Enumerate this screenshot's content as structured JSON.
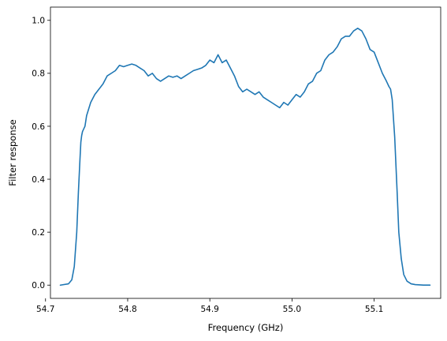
{
  "chart_data": {
    "type": "line",
    "title": "",
    "xlabel": "Frequency (GHz)",
    "ylabel": "Filter response",
    "xlim": [
      54.706,
      55.181
    ],
    "ylim": [
      -0.05,
      1.05
    ],
    "xticks": [
      54.7,
      54.8,
      54.9,
      55.0,
      55.1
    ],
    "xtick_labels": [
      "54.7",
      "54.8",
      "54.9",
      "55.0",
      "55.1"
    ],
    "yticks": [
      0.0,
      0.2,
      0.4,
      0.6,
      0.8,
      1.0
    ],
    "ytick_labels": [
      "0.0",
      "0.2",
      "0.4",
      "0.6",
      "0.8",
      "1.0"
    ],
    "grid": false,
    "legend": "none",
    "series": [
      {
        "color": "#1f77b4",
        "x": [
          54.718,
          54.728,
          54.732,
          54.735,
          54.738,
          54.74,
          54.742,
          54.743,
          54.744,
          54.745,
          54.748,
          54.75,
          54.755,
          54.76,
          54.765,
          54.77,
          54.775,
          54.78,
          54.785,
          54.79,
          54.795,
          54.8,
          54.805,
          54.81,
          54.815,
          54.82,
          54.825,
          54.83,
          54.835,
          54.84,
          54.845,
          54.85,
          54.855,
          54.86,
          54.865,
          54.87,
          54.875,
          54.88,
          54.885,
          54.89,
          54.895,
          54.9,
          54.905,
          54.91,
          54.915,
          54.92,
          54.925,
          54.93,
          54.935,
          54.94,
          54.945,
          54.95,
          54.955,
          54.96,
          54.965,
          54.97,
          54.975,
          54.98,
          54.985,
          54.99,
          54.995,
          55.0,
          55.005,
          55.01,
          55.015,
          55.02,
          55.025,
          55.03,
          55.035,
          55.04,
          55.045,
          55.05,
          55.055,
          55.06,
          55.065,
          55.07,
          55.075,
          55.08,
          55.085,
          55.09,
          55.095,
          55.1,
          55.105,
          55.11,
          55.115,
          55.118,
          55.12,
          55.122,
          55.125,
          55.128,
          55.13,
          55.133,
          55.136,
          55.14,
          55.145,
          55.15,
          55.16,
          55.168
        ],
        "y": [
          0.0,
          0.005,
          0.02,
          0.07,
          0.2,
          0.35,
          0.48,
          0.54,
          0.565,
          0.58,
          0.6,
          0.64,
          0.69,
          0.72,
          0.74,
          0.76,
          0.79,
          0.8,
          0.81,
          0.83,
          0.825,
          0.83,
          0.835,
          0.83,
          0.82,
          0.81,
          0.79,
          0.8,
          0.78,
          0.77,
          0.78,
          0.79,
          0.785,
          0.79,
          0.78,
          0.79,
          0.8,
          0.81,
          0.815,
          0.82,
          0.83,
          0.85,
          0.84,
          0.87,
          0.84,
          0.85,
          0.82,
          0.79,
          0.75,
          0.73,
          0.74,
          0.73,
          0.72,
          0.73,
          0.71,
          0.7,
          0.69,
          0.68,
          0.67,
          0.69,
          0.68,
          0.7,
          0.72,
          0.71,
          0.73,
          0.76,
          0.77,
          0.8,
          0.81,
          0.85,
          0.87,
          0.88,
          0.9,
          0.93,
          0.94,
          0.94,
          0.96,
          0.97,
          0.96,
          0.93,
          0.89,
          0.88,
          0.84,
          0.8,
          0.77,
          0.75,
          0.74,
          0.7,
          0.56,
          0.35,
          0.2,
          0.1,
          0.04,
          0.015,
          0.005,
          0.002,
          0.0,
          0.0
        ]
      }
    ]
  }
}
